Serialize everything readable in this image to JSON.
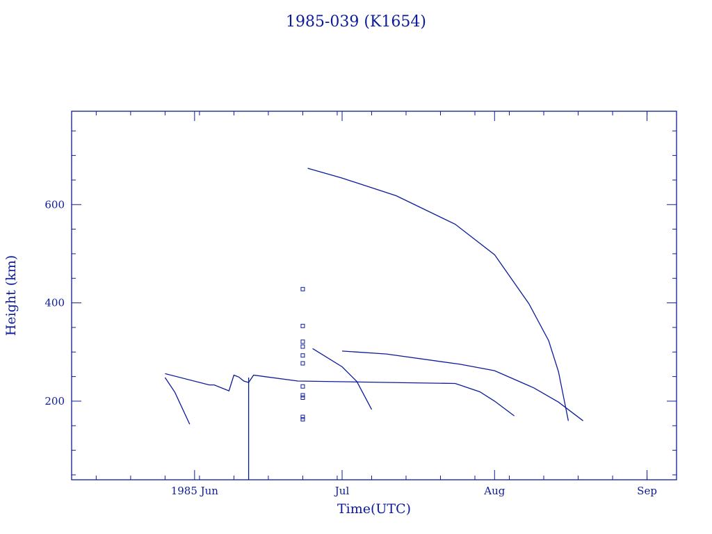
{
  "chart_data": {
    "type": "line",
    "title": "1985-039 (K1654)",
    "xlabel": "Time(UTC)",
    "ylabel": "Height (km)",
    "x_tick_labels": [
      "1985 Jun",
      "Jul",
      "Aug",
      "Sep"
    ],
    "x_ticks": [
      "1985-06-01",
      "1985-07-01",
      "1985-08-01",
      "1985-09-01"
    ],
    "xlim": [
      "1985-05-07",
      "1985-09-07"
    ],
    "y_tick_labels": [
      "200",
      "400",
      "600"
    ],
    "y_ticks": [
      200,
      400,
      600
    ],
    "ylim": [
      40,
      790
    ],
    "grid": false,
    "color": "#0b1a9a",
    "series": [
      {
        "x": [
          "1985-05-26",
          "1985-05-28",
          "1985-05-31"
        ],
        "y": [
          248,
          218,
          153
        ]
      },
      {
        "x": [
          "1985-05-26",
          "1985-06-04",
          "1985-06-05",
          "1985-06-08",
          "1985-06-09",
          "1985-06-10",
          "1985-06-11",
          "1985-06-12",
          "1985-06-13",
          "1985-06-22",
          "1985-07-11",
          "1985-07-24",
          "1985-07-29",
          "1985-08-01",
          "1985-08-05"
        ],
        "y": [
          256,
          233,
          233,
          221,
          253,
          249,
          241,
          238,
          253,
          241,
          238,
          236,
          219,
          200,
          170
        ]
      },
      {
        "x": [
          "1985-06-12",
          "1985-06-12"
        ],
        "y": [
          248,
          40
        ]
      },
      {
        "x": [
          "1985-06-25",
          "1985-07-01",
          "1985-07-04",
          "1985-07-07"
        ],
        "y": [
          307,
          270,
          240,
          183
        ]
      },
      {
        "x": [
          "1985-07-01",
          "1985-07-10",
          "1985-07-25",
          "1985-08-01",
          "1985-08-09",
          "1985-08-14",
          "1985-08-19"
        ],
        "y": [
          302,
          296,
          275,
          262,
          227,
          198,
          160
        ]
      },
      {
        "x": [
          "1985-06-24",
          "1985-07-01",
          "1985-07-12",
          "1985-07-24",
          "1985-08-01",
          "1985-08-08",
          "1985-08-12",
          "1985-08-14",
          "1985-08-15",
          "1985-08-16"
        ],
        "y": [
          674,
          654,
          618,
          560,
          498,
          398,
          323,
          260,
          210,
          160
        ]
      },
      {
        "type": "scatter",
        "marker": "square",
        "x": [
          "1985-06-23",
          "1985-06-23",
          "1985-06-23",
          "1985-06-23",
          "1985-06-23",
          "1985-06-23",
          "1985-06-23",
          "1985-06-23",
          "1985-06-23",
          "1985-06-23",
          "1985-06-23"
        ],
        "y": [
          428,
          353,
          321,
          311,
          293,
          277,
          230,
          212,
          207,
          168,
          163
        ]
      }
    ]
  }
}
